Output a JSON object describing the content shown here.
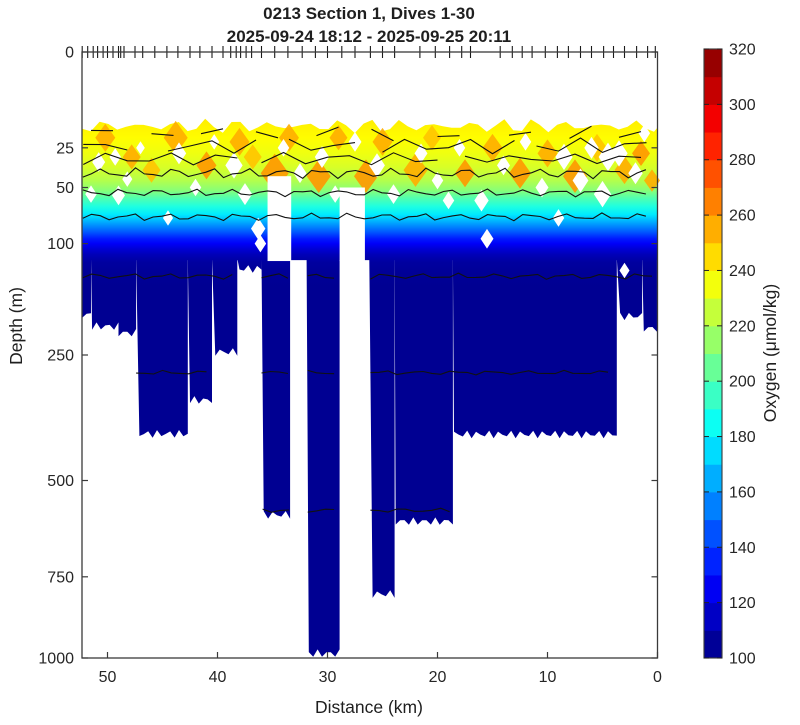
{
  "figure": {
    "title": "0213 Section 1, Dives 1-30",
    "subtitle": "2025-09-24 18:12 - 2025-09-25 20:11"
  },
  "chart_data": {
    "type": "heatmap",
    "subtype": "filled-contour-ocean-section",
    "title": "0213 Section 1, Dives 1-30",
    "subtitle": "2025-09-24 18:12 - 2025-09-25 20:11",
    "xlabel": "Distance (km)",
    "ylabel": "Depth (m)",
    "colorbar_label": "Oxygen (μmol/kg)",
    "x_axis": {
      "min": 0,
      "max": 52.3,
      "reversed": true,
      "ticks": [
        50,
        40,
        30,
        20,
        10,
        0
      ]
    },
    "y_axis": {
      "min": 0,
      "max": 1000,
      "scale": "sqrt",
      "ticks": [
        0,
        25,
        50,
        100,
        250,
        500,
        750,
        1000
      ]
    },
    "grid": false,
    "legend_position": "colorbar-right",
    "colorbar": {
      "min": 100,
      "max": 320,
      "tick_step": 20,
      "band_step": 10,
      "ticks": [
        100,
        120,
        140,
        160,
        180,
        200,
        220,
        240,
        260,
        280,
        300,
        320
      ],
      "colormap": "jet",
      "anchors": [
        [
          0.0,
          "#000080"
        ],
        [
          0.125,
          "#0000FF"
        ],
        [
          0.375,
          "#00FFFF"
        ],
        [
          0.625,
          "#FFFF00"
        ],
        [
          0.875,
          "#FF0000"
        ],
        [
          1.0,
          "#800000"
        ]
      ]
    },
    "oxygen_profile_by_depth": [
      {
        "depth": 13,
        "o2": 241
      },
      {
        "depth": 20,
        "o2": 238
      },
      {
        "depth": 28,
        "o2": 234
      },
      {
        "depth": 36,
        "o2": 229
      },
      {
        "depth": 45,
        "o2": 221
      },
      {
        "depth": 52,
        "o2": 212
      },
      {
        "depth": 58,
        "o2": 200
      },
      {
        "depth": 65,
        "o2": 189
      },
      {
        "depth": 72,
        "o2": 178
      },
      {
        "depth": 80,
        "o2": 162
      },
      {
        "depth": 88,
        "o2": 147
      },
      {
        "depth": 95,
        "o2": 133
      },
      {
        "depth": 100,
        "o2": 126
      },
      {
        "depth": 106,
        "o2": 118
      },
      {
        "depth": 112,
        "o2": 112
      },
      {
        "depth": 120,
        "o2": 107
      },
      {
        "depth": 132,
        "o2": 105
      },
      {
        "depth": 150,
        "o2": 104
      }
    ],
    "surface_top_depth_m": 15,
    "bottom_profile": [
      {
        "from": 52.3,
        "to": 51.5,
        "depth": 188
      },
      {
        "from": 51.5,
        "to": 49.0,
        "depth": 205
      },
      {
        "from": 49.0,
        "to": 47.4,
        "depth": 215
      },
      {
        "from": 47.4,
        "to": 42.7,
        "depth": 397
      },
      {
        "from": 42.7,
        "to": 40.5,
        "depth": 330
      },
      {
        "from": 40.5,
        "to": 38.2,
        "depth": 245
      },
      {
        "from": 38.2,
        "to": 36.0,
        "depth": 128
      },
      {
        "from": 36.0,
        "to": 33.4,
        "depth": 583
      },
      {
        "from": 33.4,
        "to": 31.9,
        "depth": 118
      },
      {
        "from": 31.9,
        "to": 28.9,
        "depth": 985
      },
      {
        "from": 28.9,
        "to": 26.2,
        "depth": 118
      },
      {
        "from": 26.2,
        "to": 23.9,
        "depth": 800
      },
      {
        "from": 23.9,
        "to": 18.6,
        "depth": 600
      },
      {
        "from": 18.6,
        "to": 3.7,
        "depth": 398
      },
      {
        "from": 3.7,
        "to": 1.4,
        "depth": 190
      },
      {
        "from": 1.4,
        "to": 0.05,
        "depth": 208
      }
    ],
    "gap_stripes": [
      {
        "from": 35.45,
        "to": 33.3,
        "d_from": 42,
        "d_to": 119
      },
      {
        "from": 28.9,
        "to": 26.6,
        "d_from": 50,
        "d_to": 119
      }
    ],
    "gap_diamonds": [
      [
        50.8,
        33,
        9
      ],
      [
        49.3,
        30,
        8
      ],
      [
        48.2,
        44,
        7
      ],
      [
        51.5,
        55,
        8
      ],
      [
        49.0,
        56,
        9
      ],
      [
        47.0,
        25,
        6
      ],
      [
        43.5,
        28,
        10
      ],
      [
        42.0,
        50,
        8
      ],
      [
        40.3,
        22,
        7
      ],
      [
        38.5,
        35,
        12
      ],
      [
        37.5,
        55,
        10
      ],
      [
        36.3,
        85,
        10
      ],
      [
        36.1,
        100,
        8
      ],
      [
        34.0,
        25,
        8
      ],
      [
        32.5,
        40,
        9
      ],
      [
        30.5,
        30,
        10
      ],
      [
        29.3,
        55,
        8
      ],
      [
        27.5,
        22,
        9
      ],
      [
        25.5,
        35,
        11
      ],
      [
        24.0,
        55,
        9
      ],
      [
        21.5,
        28,
        9
      ],
      [
        20.0,
        45,
        8
      ],
      [
        18.0,
        25,
        8
      ],
      [
        16.0,
        60,
        10
      ],
      [
        15.5,
        95,
        9
      ],
      [
        14.0,
        35,
        9
      ],
      [
        12.0,
        22,
        8
      ],
      [
        10.5,
        50,
        9
      ],
      [
        9.0,
        75,
        8
      ],
      [
        8.5,
        30,
        12
      ],
      [
        7.0,
        45,
        11
      ],
      [
        6.0,
        25,
        10
      ],
      [
        5.0,
        55,
        12
      ],
      [
        4.5,
        30,
        13
      ],
      [
        3.5,
        28,
        12
      ],
      [
        3.0,
        130,
        7
      ],
      [
        2.0,
        40,
        10
      ],
      [
        1.2,
        18,
        8
      ],
      [
        44.5,
        75,
        7
      ],
      [
        19.0,
        60,
        8
      ]
    ],
    "high_o2_patches": [
      [
        50.2,
        20,
        10,
        "#FFAD00"
      ],
      [
        47.8,
        30,
        9,
        "#FFAD00"
      ],
      [
        43.8,
        20,
        12,
        "#FFAD00"
      ],
      [
        41.0,
        35,
        10,
        "#FF9700"
      ],
      [
        38.0,
        22,
        10,
        "#FFAD00"
      ],
      [
        34.8,
        40,
        14,
        "#FF9700"
      ],
      [
        33.5,
        20,
        10,
        "#FFAD00"
      ],
      [
        30.8,
        42,
        12,
        "#FF9700"
      ],
      [
        29.0,
        20,
        9,
        "#FFAD00"
      ],
      [
        26.5,
        42,
        12,
        "#FF9700"
      ],
      [
        25.0,
        22,
        10,
        "#FFAD00"
      ],
      [
        22.0,
        38,
        12,
        "#FFAD00"
      ],
      [
        20.5,
        20,
        9,
        "#FFC400"
      ],
      [
        17.5,
        40,
        10,
        "#FF9700"
      ],
      [
        15.0,
        25,
        10,
        "#FFAD00"
      ],
      [
        12.5,
        40,
        11,
        "#FF9700"
      ],
      [
        10.0,
        28,
        10,
        "#FFAD00"
      ],
      [
        7.5,
        42,
        12,
        "#FF9700"
      ],
      [
        5.5,
        25,
        10,
        "#FFC400"
      ],
      [
        3.0,
        38,
        10,
        "#FFAD00"
      ],
      [
        1.5,
        28,
        9,
        "#FF9700"
      ],
      [
        0.5,
        45,
        8,
        "#FFAD00"
      ],
      [
        46.0,
        38,
        9,
        "#FFC400"
      ],
      [
        36.8,
        30,
        9,
        "#FFC400"
      ]
    ],
    "contours": [
      {
        "o2": 240,
        "depth": 18,
        "amp": 5,
        "zigzag": true,
        "ranges": [
          [
            51.5,
            48.5
          ],
          [
            46,
            43
          ],
          [
            41.5,
            39
          ],
          [
            36.5,
            34.5
          ],
          [
            31,
            28.5
          ],
          [
            26,
            23
          ],
          [
            20,
            16.5
          ],
          [
            13.5,
            10
          ],
          [
            8,
            5.5
          ],
          [
            3.5,
            1
          ]
        ]
      },
      {
        "o2": 235,
        "depth": 24,
        "amp": 5,
        "zigzag": true,
        "ranges": [
          [
            52.2,
            47
          ],
          [
            44.5,
            36.5
          ],
          [
            33.5,
            27
          ],
          [
            25,
            13
          ],
          [
            11,
            0.6
          ]
        ]
      },
      {
        "o2": 230,
        "depth": 31,
        "amp": 4,
        "zigzag": true,
        "ranges": [
          [
            52.2,
            38
          ],
          [
            36,
            19
          ],
          [
            17.5,
            0.4
          ]
        ]
      },
      {
        "o2": 225,
        "depth": 40,
        "amp": 3.5,
        "zigzag": false,
        "ranges": [
          [
            52.25,
            0.3
          ]
        ]
      },
      {
        "o2": 215,
        "depth": 54,
        "amp": 2.5,
        "zigzag": false,
        "ranges": [
          [
            52.25,
            0.3
          ]
        ]
      },
      {
        "o2": 185,
        "depth": 74,
        "amp": 2.5,
        "zigzag": false,
        "ranges": [
          [
            52.25,
            0.3
          ]
        ]
      },
      {
        "o2": 115,
        "depth": 137,
        "amp": 2,
        "zigzag": false,
        "ranges": [
          [
            52.25,
            38.3
          ],
          [
            36,
            33.5
          ],
          [
            31.8,
            29
          ],
          [
            26.1,
            0.3
          ]
        ]
      },
      {
        "o2": 110,
        "depth": 280,
        "amp": 1.5,
        "zigzag": false,
        "ranges": [
          [
            47.4,
            40.6
          ],
          [
            36,
            33.5
          ],
          [
            31.8,
            29
          ],
          [
            26.1,
            3.8
          ]
        ]
      },
      {
        "o2": 105,
        "depth": 572,
        "amp": 1.5,
        "zigzag": false,
        "ranges": [
          [
            35.9,
            33.5
          ],
          [
            31.8,
            29
          ],
          [
            26.1,
            18.7
          ]
        ]
      }
    ],
    "dive_surfacing_marks_km": [
      52.3,
      51.8,
      51.3,
      50.9,
      50.4,
      50.0,
      49.5,
      49.0,
      48.8,
      48.5,
      47.5,
      46.8,
      45.7,
      44.6,
      43.6,
      42.5,
      41.6,
      40.5,
      39.5,
      38.8,
      38.3,
      37.9,
      37.4,
      36.9,
      36.0,
      34.8,
      33.6,
      32.3,
      31.1,
      30.0,
      28.7,
      27.5,
      26.1,
      25.0,
      23.9,
      21.6,
      20.2,
      18.9,
      17.8,
      17.0,
      14.3,
      13.2,
      12.3,
      11.4,
      10.2,
      9.1,
      8.1,
      7.0,
      6.0,
      4.9,
      4.0,
      3.0,
      1.9,
      0.9,
      0.2
    ],
    "style": {
      "background": "#ffffff",
      "axes_color": "#3a3a3a",
      "contour_color": "#111111",
      "tick_label_color": "#262626"
    }
  }
}
